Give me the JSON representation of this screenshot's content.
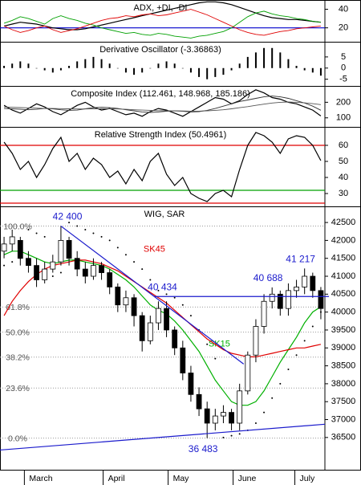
{
  "chart_data": [
    {
      "type": "line",
      "title": "ADX, +DI, -DI",
      "ylim": [
        5,
        50
      ],
      "yticks": [
        40,
        20
      ],
      "ref_lines": [
        {
          "value": 20,
          "color": "#0000cc"
        }
      ],
      "series": [
        {
          "color": "#000000",
          "values": [
            22,
            24,
            26,
            25,
            24,
            22,
            20,
            19,
            18,
            18,
            19,
            21,
            23,
            25,
            27,
            29,
            31,
            33,
            35,
            37,
            39,
            41,
            43,
            45,
            47,
            48,
            48,
            47,
            45,
            42,
            39,
            36,
            33,
            31,
            30,
            29,
            29,
            28,
            27,
            26
          ]
        },
        {
          "color": "#00a000",
          "values": [
            25,
            28,
            32,
            30,
            27,
            24,
            30,
            33,
            30,
            28,
            25,
            23,
            20,
            18,
            16,
            14,
            15,
            13,
            12,
            14,
            13,
            11,
            10,
            9,
            11,
            12,
            14,
            16,
            20,
            26,
            32,
            36,
            38,
            35,
            33,
            32,
            30,
            29,
            27,
            26
          ]
        },
        {
          "color": "#e00000",
          "values": [
            22,
            18,
            15,
            17,
            20,
            22,
            18,
            15,
            17,
            19,
            22,
            25,
            28,
            30,
            31,
            33,
            32,
            34,
            35,
            33,
            34,
            36,
            38,
            40,
            37,
            34,
            30,
            26,
            22,
            18,
            15,
            13,
            12,
            14,
            16,
            17,
            19,
            20,
            21,
            22
          ]
        }
      ]
    },
    {
      "type": "bar",
      "title": "Derivative Oscillator (-3.36863)",
      "ylim": [
        -8,
        11.8
      ],
      "yticks": [
        5,
        0,
        -5
      ],
      "color": "#000000",
      "values": [
        1,
        2,
        3,
        2,
        0,
        -1,
        -2,
        -1,
        1,
        3,
        4,
        5,
        4,
        2,
        0,
        -2,
        -3,
        -2,
        0,
        2,
        3,
        2,
        0,
        -2,
        -4,
        -5,
        -4,
        -3,
        -1,
        2,
        5,
        7,
        9,
        9,
        7,
        4,
        1,
        -1,
        -2,
        -3.4
      ]
    },
    {
      "type": "line",
      "title": "Composite Index (112.461, 148.968, 185.186)",
      "ylim": [
        42,
        305
      ],
      "yticks": [
        200,
        100
      ],
      "series": [
        {
          "color": "#000000",
          "values": [
            180,
            150,
            130,
            160,
            190,
            170,
            140,
            120,
            150,
            180,
            200,
            170,
            150,
            160,
            140,
            120,
            130,
            110,
            140,
            160,
            150,
            130,
            110,
            140,
            170,
            200,
            230,
            220,
            190,
            210,
            250,
            280,
            260,
            230,
            220,
            200,
            190,
            170,
            150,
            112
          ]
        },
        {
          "color": "#333333",
          "values": [
            160,
            158,
            155,
            152,
            155,
            160,
            158,
            152,
            148,
            150,
            158,
            165,
            168,
            165,
            160,
            152,
            145,
            138,
            135,
            138,
            142,
            145,
            142,
            138,
            140,
            148,
            160,
            175,
            190,
            205,
            215,
            225,
            235,
            240,
            235,
            225,
            210,
            195,
            175,
            149
          ]
        },
        {
          "color": "#555555",
          "values": [
            170,
            168,
            166,
            164,
            162,
            160,
            160,
            159,
            158,
            157,
            157,
            158,
            158,
            158,
            157,
            155,
            152,
            150,
            148,
            146,
            145,
            145,
            144,
            143,
            143,
            145,
            148,
            152,
            158,
            165,
            172,
            180,
            188,
            195,
            200,
            202,
            200,
            196,
            191,
            185
          ]
        }
      ]
    },
    {
      "type": "line",
      "title": "Relative Strength Index (50.4961)",
      "ylim": [
        22,
        71.5
      ],
      "yticks": [
        60,
        50,
        40,
        30
      ],
      "ref_lines": [
        {
          "value": 60,
          "color": "#e00000"
        },
        {
          "value": 32,
          "color": "#00a000"
        },
        {
          "value": 24,
          "color": "#e00000"
        }
      ],
      "series": [
        {
          "color": "#000000",
          "values": [
            62,
            55,
            45,
            50,
            40,
            48,
            58,
            65,
            50,
            55,
            45,
            52,
            48,
            40,
            44,
            36,
            45,
            38,
            50,
            55,
            42,
            35,
            40,
            30,
            27,
            25,
            30,
            32,
            28,
            45,
            60,
            68,
            66,
            62,
            55,
            64,
            66,
            65,
            60,
            50.5
          ]
        }
      ]
    },
    {
      "type": "candlestick",
      "title": "WIG, SAR",
      "ylim": [
        35600,
        42950
      ],
      "yticks": [
        {
          "value": 42500,
          "label": "42500"
        },
        42000,
        41500,
        41000,
        40500,
        40000,
        39500,
        39000,
        38500,
        38000,
        37500,
        37000,
        36500
      ],
      "open": [
        41700,
        41900,
        42000,
        41500,
        41300,
        40900,
        41200,
        41400,
        42000,
        41500,
        41200,
        41000,
        41300,
        41100,
        40700,
        40200,
        40400,
        39900,
        39200,
        39700,
        40100,
        39500,
        39000,
        38300,
        37700,
        37300,
        36900,
        37100,
        37200,
        36900,
        37800,
        38800,
        39600,
        40300,
        40500,
        40100,
        40600,
        40700,
        41000,
        40600
      ],
      "high": [
        42100,
        42300,
        42100,
        41700,
        41500,
        41400,
        41600,
        42400,
        42100,
        41700,
        41400,
        41500,
        41400,
        41200,
        40800,
        40600,
        40500,
        40000,
        39900,
        40300,
        40300,
        39600,
        39200,
        38500,
        37900,
        37500,
        37300,
        37400,
        37300,
        38000,
        38900,
        39800,
        40500,
        40688,
        40600,
        40800,
        40900,
        41217,
        41100,
        40700
      ],
      "low": [
        41500,
        41700,
        41300,
        41100,
        40700,
        40800,
        41100,
        41300,
        41300,
        41000,
        40800,
        40900,
        40900,
        40500,
        40000,
        40000,
        39600,
        38900,
        39100,
        39500,
        39300,
        38800,
        38100,
        37500,
        37100,
        36483,
        36700,
        36900,
        36700,
        36700,
        37700,
        38600,
        39400,
        40100,
        39900,
        39900,
        40400,
        40500,
        40400,
        39800
      ],
      "close": [
        41900,
        42100,
        41500,
        41300,
        40900,
        41200,
        41400,
        42000,
        41500,
        41200,
        41000,
        41300,
        41100,
        40700,
        40200,
        40400,
        39900,
        39200,
        39700,
        40100,
        39500,
        39000,
        38300,
        37700,
        37300,
        36900,
        37100,
        37200,
        36900,
        37800,
        38800,
        39600,
        40300,
        40500,
        40100,
        40600,
        40700,
        41000,
        40600,
        40100
      ],
      "series": [
        {
          "name": "SK15",
          "color": "#00b000",
          "label_at": [
            26.5,
            39100
          ],
          "values": [
            41600,
            41700,
            41700,
            41600,
            41500,
            41400,
            41350,
            41400,
            41450,
            41450,
            41400,
            41350,
            41300,
            41200,
            41050,
            40900,
            40700,
            40450,
            40200,
            40050,
            39950,
            39750,
            39500,
            39200,
            38900,
            38500,
            38100,
            37800,
            37500,
            37400,
            37400,
            37500,
            37800,
            38200,
            38600,
            38950,
            39300,
            39700,
            40000,
            40150
          ]
        },
        {
          "name": "SK45",
          "color": "#e00000",
          "label_at": [
            18.5,
            41750
          ],
          "values": [
            39900,
            40300,
            40600,
            40850,
            41050,
            41200,
            41300,
            41350,
            41400,
            41450,
            41450,
            41400,
            41350,
            41250,
            41150,
            41000,
            40850,
            40700,
            40550,
            40400,
            40250,
            40050,
            39850,
            39650,
            39450,
            39250,
            39100,
            38950,
            38850,
            38800,
            38750,
            38750,
            38800,
            38850,
            38900,
            38950,
            39000,
            39000,
            39050,
            39100
          ]
        }
      ],
      "sar": {
        "color": "#000000",
        "values": [
          41300,
          41400,
          41500,
          42300,
          42200,
          42100,
          41000,
          41100,
          42500,
          42400,
          42300,
          42200,
          42100,
          42000,
          41800,
          41600,
          41400,
          41200,
          40900,
          40600,
          40500,
          40400,
          40200,
          39900,
          39500,
          39100,
          38700,
          36500,
          36550,
          36600,
          36700,
          36900,
          37200,
          37600,
          38000,
          38400,
          38800,
          39200,
          39600,
          40000
        ]
      },
      "fib_levels": [
        {
          "value": 42400,
          "label": "100.0%"
        },
        {
          "value": 40140,
          "label": "61.8%"
        },
        {
          "value": 39441,
          "label": "50.0%"
        },
        {
          "value": 38743,
          "label": "38.2%"
        },
        {
          "value": 37879,
          "label": "23.6%"
        },
        {
          "value": 36483,
          "label": "0.0%"
        }
      ],
      "annotations": [
        {
          "value": 42400,
          "label": "42 400",
          "index": 7.8
        },
        {
          "value": 40434,
          "label": "40 434",
          "index": 19.5
        },
        {
          "value": 40688,
          "label": "40 688",
          "index": 32.5
        },
        {
          "value": 41217,
          "label": "41 217",
          "index": 36.5
        },
        {
          "value": 36483,
          "label": "36 483",
          "index": 24.5
        }
      ],
      "trendlines": [
        {
          "from": [
            7,
            42400
          ],
          "to": [
            29.5,
            38550
          ]
        },
        {
          "from": [
            18.5,
            40434
          ],
          "to": [
            40,
            40434
          ]
        },
        {
          "from": [
            -0.5,
            36150
          ],
          "to": [
            39.5,
            36870
          ]
        }
      ],
      "xticks": [
        {
          "value": 2.5,
          "label": "March"
        },
        {
          "value": 12.2,
          "label": "April"
        },
        {
          "value": 20.2,
          "label": "May"
        },
        {
          "value": 28.2,
          "label": "June"
        },
        {
          "value": 35.8,
          "label": "July"
        }
      ]
    }
  ]
}
